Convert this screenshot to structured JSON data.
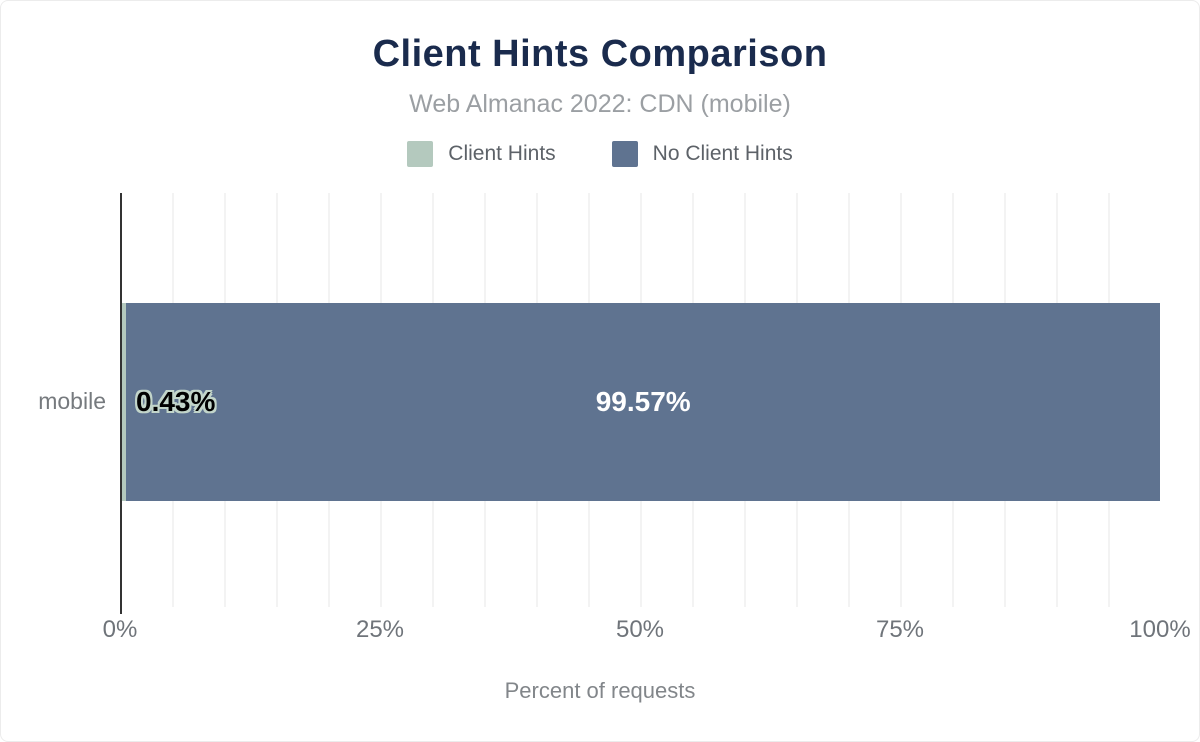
{
  "header": {
    "title": "Client Hints Comparison",
    "subtitle": "Web Almanac 2022: CDN (mobile)"
  },
  "legend": {
    "position": "top",
    "items": [
      {
        "label": "Client Hints",
        "color": "#b4c9be"
      },
      {
        "label": "No Client Hints",
        "color": "#5f7390"
      }
    ]
  },
  "chart_data": {
    "type": "bar",
    "orientation": "horizontal",
    "stacked": true,
    "title": "Client Hints Comparison",
    "subtitle": "Web Almanac 2022: CDN (mobile)",
    "categories": [
      "mobile"
    ],
    "series": [
      {
        "name": "Client Hints",
        "values": [
          0.43
        ],
        "color": "#b4c9be",
        "data_label": "0.43%"
      },
      {
        "name": "No Client Hints",
        "values": [
          99.57
        ],
        "color": "#5f7390",
        "data_label": "99.57%"
      }
    ],
    "xlabel": "Percent of requests",
    "ylabel": "",
    "x_ticks": [
      "0%",
      "25%",
      "50%",
      "75%",
      "100%"
    ],
    "xlim": [
      0,
      100
    ],
    "grid": {
      "vertical_line_every_percent": 5,
      "color": "#f3f3f3"
    },
    "legend_position": "top"
  },
  "colors": {
    "title": "#1a2b4d",
    "subtitle": "#9b9fa3",
    "axis_line": "#333333",
    "tick_label": "#6f747a",
    "category_label": "#767a7e",
    "axis_title": "#82868a",
    "label_on_light": "#000000",
    "label_on_dark": "#ffffff",
    "label_halo": "#c2d5ca"
  }
}
